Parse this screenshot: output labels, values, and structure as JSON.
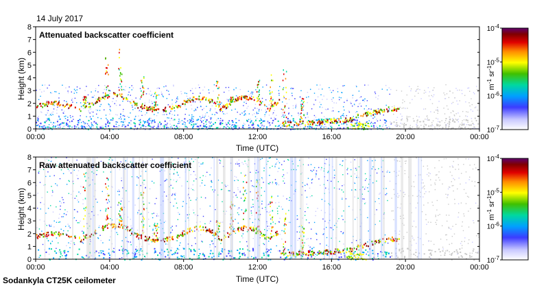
{
  "header": {
    "date": "14 July 2017"
  },
  "footer": {
    "instrument": "Sodankyla CT25K ceilometer"
  },
  "colors": {
    "ramp": [
      "#ffffff",
      "#c8c8ff",
      "#3c3cff",
      "#00a0ff",
      "#00d8a0",
      "#40c000",
      "#ffff00",
      "#ff8c00",
      "#e00000",
      "#800000",
      "#600070"
    ]
  },
  "chart_data": [
    {
      "type": "heatmap",
      "title": "Attenuated backscatter coefficient",
      "xlabel": "Time (UTC)",
      "ylabel": "Height (km)",
      "x_ticks": [
        "00:00",
        "04:00",
        "08:00",
        "12:00",
        "16:00",
        "20:00",
        "00:00"
      ],
      "y_ticks": [
        0,
        1,
        2,
        3,
        4,
        5,
        6,
        7,
        8
      ],
      "ylim": [
        0,
        8
      ],
      "colorbar": {
        "scale": "log",
        "ticks": [
          "10",
          "10",
          "10",
          "10"
        ],
        "exponents": [
          "-4",
          "-5",
          "-6",
          "-7"
        ],
        "unit": "m",
        "unit_exp": "-1",
        "unit2": "sr",
        "unit2_exp": "-1"
      }
    },
    {
      "type": "heatmap",
      "title": "Raw attenuated backscatter coefficient",
      "xlabel": "Time (UTC)",
      "ylabel": "Height (km)",
      "x_ticks": [
        "00:00",
        "04:00",
        "08:00",
        "12:00",
        "16:00",
        "20:00",
        "00:00"
      ],
      "y_ticks": [
        0,
        1,
        2,
        3,
        4,
        5,
        6,
        7,
        8
      ],
      "ylim": [
        0,
        8
      ],
      "colorbar": {
        "scale": "log",
        "ticks": [
          "10",
          "10",
          "10",
          "10"
        ],
        "exponents": [
          "-4",
          "-5",
          "-6",
          "-7"
        ],
        "unit": "m",
        "unit_exp": "-1",
        "unit2": "sr",
        "unit2_exp": "-1"
      }
    }
  ]
}
